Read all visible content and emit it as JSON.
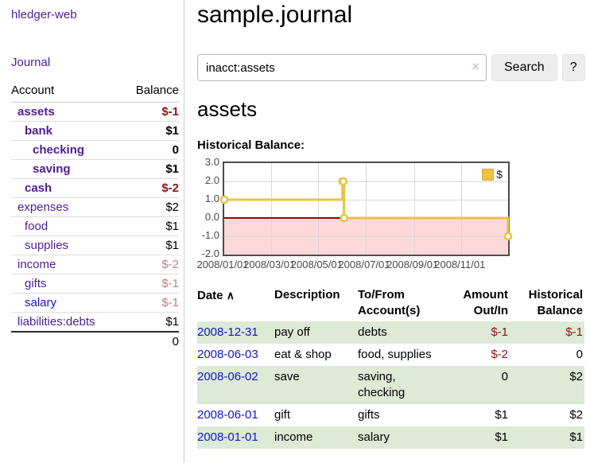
{
  "sidebar": {
    "app_title": "hledger-web",
    "nav": {
      "journal": "Journal"
    },
    "table": {
      "account_header": "Account",
      "balance_header": "Balance",
      "accounts": [
        {
          "name": "assets",
          "depth": 1,
          "balance": "$-1",
          "strong": true
        },
        {
          "name": "bank",
          "depth": 2,
          "balance": "$1",
          "strong": true
        },
        {
          "name": "checking",
          "depth": 3,
          "balance": "0",
          "strong": true
        },
        {
          "name": "saving",
          "depth": 3,
          "balance": "$1",
          "strong": true
        },
        {
          "name": "cash",
          "depth": 2,
          "balance": "$-2",
          "strong": true
        },
        {
          "name": "expenses",
          "depth": 1,
          "balance": "$2",
          "strong": false
        },
        {
          "name": "food",
          "depth": 2,
          "balance": "$1",
          "strong": false
        },
        {
          "name": "supplies",
          "depth": 2,
          "balance": "$1",
          "strong": false
        },
        {
          "name": "income",
          "depth": 1,
          "balance": "$-2",
          "strong": false
        },
        {
          "name": "gifts",
          "depth": 2,
          "balance": "$-1",
          "strong": false
        },
        {
          "name": "salary",
          "depth": 2,
          "balance": "$-1",
          "strong": false,
          "unvisited": true
        },
        {
          "name": "liabilities:debts",
          "depth": 1,
          "balance": "$1",
          "strong": false
        }
      ],
      "total": "0"
    }
  },
  "main": {
    "title": "sample.journal",
    "search": {
      "value": "inacct:assets",
      "clear_icon": "×",
      "button_label": "Search",
      "help_label": "?"
    },
    "account_heading": "assets",
    "chart_label": "Historical Balance:"
  },
  "chart_data": {
    "type": "line",
    "step": true,
    "title": "Historical Balance:",
    "x_range": [
      "2008-01-01",
      "2008-12-31"
    ],
    "ylim": [
      -2,
      3
    ],
    "yticks": [
      "3.0",
      "2.0",
      "1.0",
      "0.0",
      "-1.0",
      "-2.0"
    ],
    "xticks": [
      {
        "label": "2008/01/01",
        "date": "2008-01-01"
      },
      {
        "label": "2008/03/01",
        "date": "2008-03-01"
      },
      {
        "label": "2008/05/01",
        "date": "2008-05-01"
      },
      {
        "label": "2008/07/01",
        "date": "2008-07-01"
      },
      {
        "label": "2008/09/01",
        "date": "2008-09-01"
      },
      {
        "label": "2008/11/01",
        "date": "2008-11-01"
      }
    ],
    "series": [
      {
        "name": "$",
        "points": [
          [
            "2008-01-01",
            1
          ],
          [
            "2008-06-01",
            2
          ],
          [
            "2008-06-02",
            2
          ],
          [
            "2008-06-03",
            0
          ],
          [
            "2008-12-31",
            -1
          ]
        ]
      }
    ],
    "legend_position": "top-right",
    "grid": true,
    "colors": {
      "series": "#edc240",
      "marker_fill": "#ffffff",
      "negative_region": "#ffd9d9",
      "zero_line": "#a40000",
      "grid_line": "#d8d8d8",
      "plot_border": "#4d4d4d"
    }
  },
  "transactions": {
    "headers": {
      "date": "Date",
      "sort_icon": "∧",
      "description": "Description",
      "accounts": "To/From Account(s)",
      "amount": "Amount Out/In",
      "balance": "Historical Balance"
    },
    "rows": [
      {
        "date": "2008-12-31",
        "description": "pay off",
        "accounts": "debts",
        "amount": "$-1",
        "balance": "$-1"
      },
      {
        "date": "2008-06-03",
        "description": "eat & shop",
        "accounts": "food, supplies",
        "amount": "$-2",
        "balance": "0"
      },
      {
        "date": "2008-06-02",
        "description": "save",
        "accounts": "saving, checking",
        "amount": "0",
        "balance": "$2"
      },
      {
        "date": "2008-06-01",
        "description": "gift",
        "accounts": "gifts",
        "amount": "$1",
        "balance": "$2"
      },
      {
        "date": "2008-01-01",
        "description": "income",
        "accounts": "salary",
        "amount": "$1",
        "balance": "$1"
      }
    ]
  },
  "colors": {
    "link_purple": "#4f1d96",
    "link_blue": "#1414cc",
    "negative_strong": "#8e1216",
    "negative_muted": "#c07f7f",
    "row_green": "#dcead6",
    "button_gray": "#ededed"
  }
}
